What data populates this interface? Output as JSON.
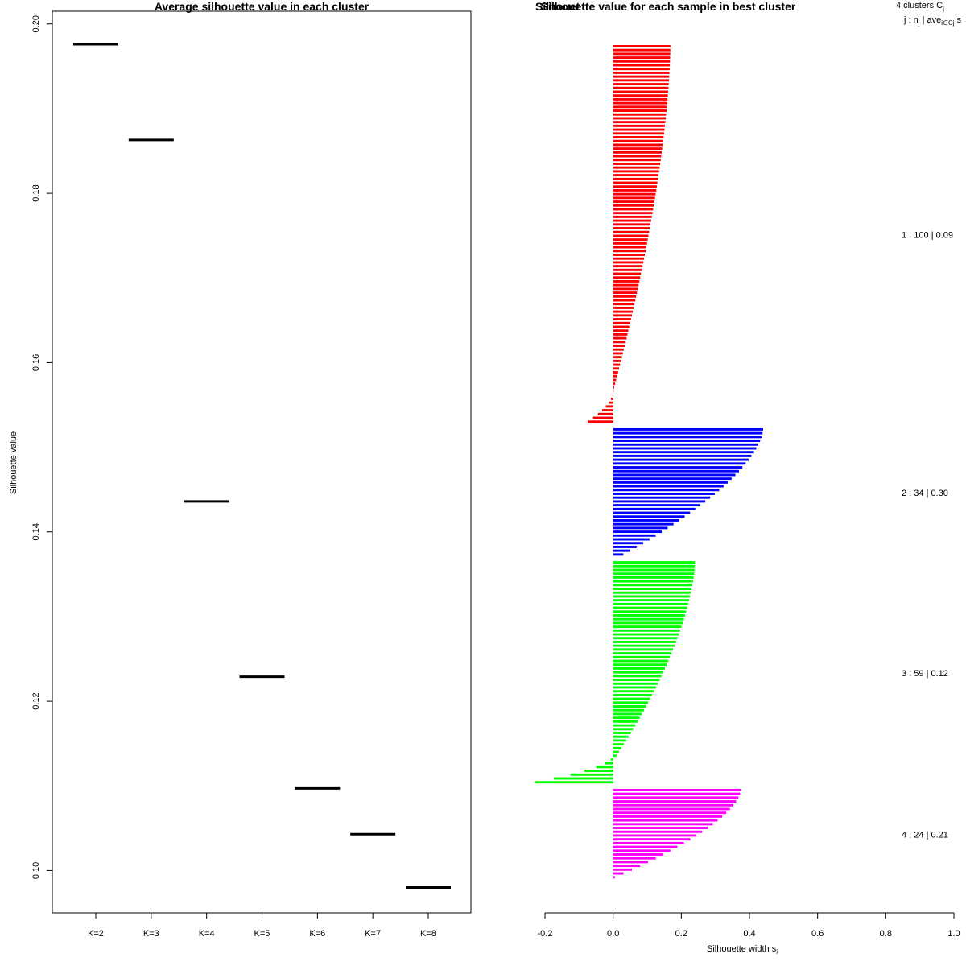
{
  "chart_data": [
    {
      "type": "scatter",
      "title": "Average silhouette value in each cluster",
      "xlabel": "",
      "ylabel": "Silhouette value",
      "categories": [
        "K=2",
        "K=3",
        "K=4",
        "K=5",
        "K=6",
        "K=7",
        "K=8"
      ],
      "values": [
        0.1976,
        0.1863,
        0.1436,
        0.1229,
        0.1097,
        0.1043,
        0.098
      ],
      "ylim": [
        0.095,
        0.2015
      ],
      "yticks": [
        0.1,
        0.12,
        0.14,
        0.16,
        0.18,
        0.2
      ],
      "ytick_labels": [
        "0.10",
        "0.12",
        "0.14",
        "0.16",
        "0.18",
        "0.20"
      ],
      "marker": "horizontal segment",
      "color": "#000000"
    },
    {
      "type": "bar",
      "orientation": "horizontal",
      "title": "Silhouette value for each sample in best cluster",
      "title_overlap_text": "Silhouet",
      "xlabel": "Silhouette width s",
      "xlabel_subscript": "i",
      "xlim": [
        -0.2,
        1.0
      ],
      "xticks": [
        -0.2,
        0.0,
        0.2,
        0.4,
        0.6,
        0.8,
        1.0
      ],
      "xtick_labels": [
        "-0.2",
        "0.0",
        "0.2",
        "0.4",
        "0.6",
        "0.8",
        "1.0"
      ],
      "legend_header": {
        "line1_prefix": "4  clusters  C",
        "line1_sub": "j",
        "line2_prefix": "j :  n",
        "line2_sub1": "j",
        "line2_mid": " | ave",
        "line2_sub2": "i∈Cj",
        "line2_suffix": "  s"
      },
      "series": [
        {
          "name": "1",
          "label": "1 :  100  |  0.09",
          "color": "#ff0000",
          "n": 100,
          "max": 0.168,
          "min": 0.0,
          "neg_count": 8,
          "neg_min": -0.075
        },
        {
          "name": "2",
          "label": "2 :  34  |  0.30",
          "color": "#0000ff",
          "n": 34,
          "max": 0.44,
          "min": 0.03,
          "neg_count": 0,
          "neg_min": 0
        },
        {
          "name": "3",
          "label": "3 :  59  |  0.12",
          "color": "#00ff00",
          "n": 59,
          "max": 0.24,
          "min": 0.01,
          "neg_count": 7,
          "neg_min": -0.23
        },
        {
          "name": "4",
          "label": "4 :  24  |  0.21",
          "color": "#ff00ff",
          "n": 24,
          "max": 0.375,
          "min": 0.005,
          "neg_count": 0,
          "neg_min": 0
        }
      ]
    }
  ]
}
